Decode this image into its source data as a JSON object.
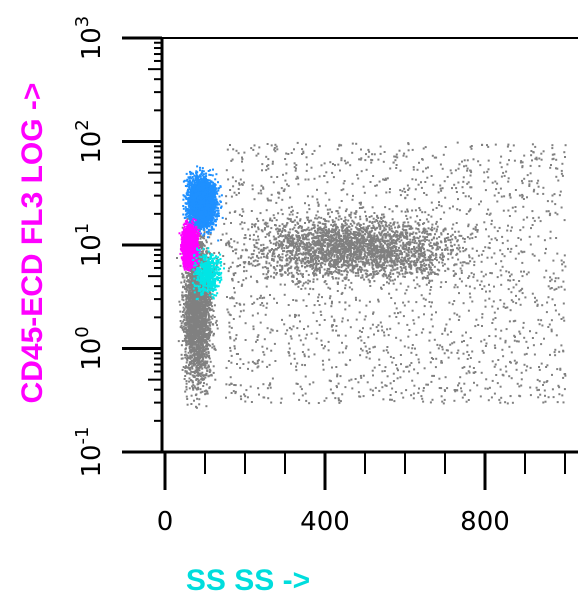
{
  "chart_data": {
    "type": "scatter",
    "title": "",
    "xlabel": "SS SS ->",
    "ylabel": "CD45-ECD FL3 LOG ->",
    "x_ticks": [
      "0",
      "400",
      "800"
    ],
    "y_ticks": [
      {
        "base": "10",
        "exp": "-1"
      },
      {
        "base": "10",
        "exp": "0"
      },
      {
        "base": "10",
        "exp": "1"
      },
      {
        "base": "10",
        "exp": "2"
      },
      {
        "base": "10",
        "exp": "3"
      }
    ],
    "xlim": [
      0,
      1023
    ],
    "ylim": [
      0.1,
      1000
    ],
    "y_scale": "log",
    "grid": false,
    "colors": {
      "axes": "#000000",
      "xlabel": "#00dddd",
      "ylabel": "#ff00ff"
    },
    "series": [
      {
        "color": "#808080",
        "clusters": [
          {
            "x": [
              40,
              900
            ],
            "y": [
              3,
              30
            ],
            "density": "high"
          },
          {
            "x": [
              20,
              140
            ],
            "y": [
              0.15,
              40
            ],
            "density": "high"
          },
          {
            "x": [
              150,
              1000
            ],
            "y": [
              0.3,
              100
            ],
            "density": "low"
          }
        ]
      },
      {
        "color": "#1e90ff",
        "clusters": [
          {
            "x": [
              30,
              150
            ],
            "y": [
              10,
              70
            ],
            "density": "high"
          }
        ]
      },
      {
        "color": "#ff00ff",
        "clusters": [
          {
            "x": [
              30,
              90
            ],
            "y": [
              5,
              20
            ],
            "density": "high"
          }
        ]
      },
      {
        "color": "#00e5e5",
        "clusters": [
          {
            "x": [
              50,
              160
            ],
            "y": [
              2.5,
              12
            ],
            "density": "medium"
          }
        ]
      }
    ]
  }
}
